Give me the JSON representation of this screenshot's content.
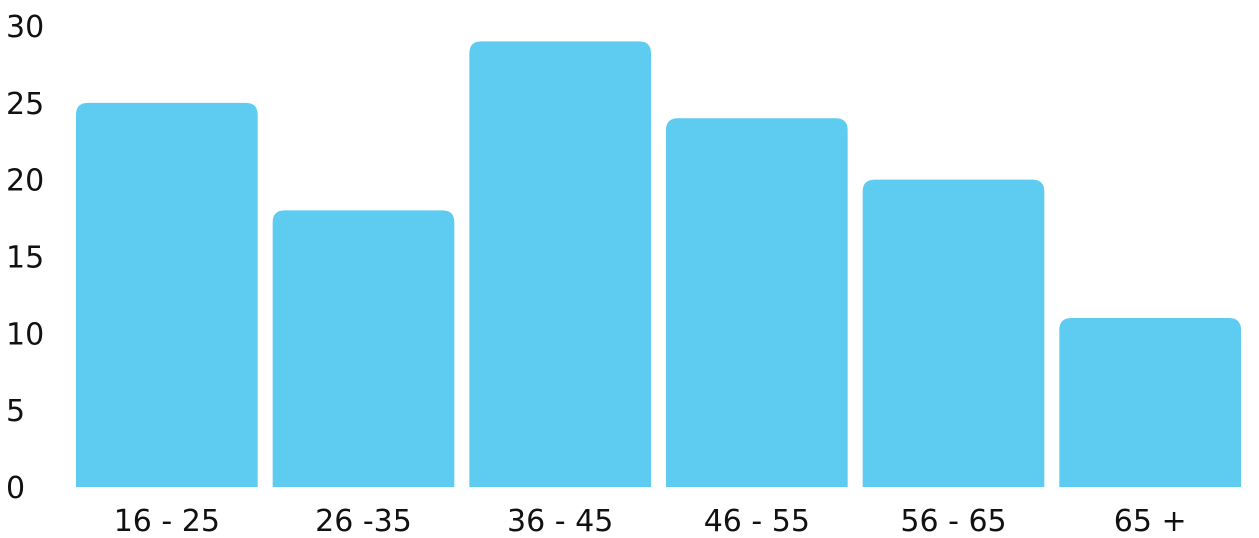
{
  "chart_data": {
    "type": "bar",
    "categories": [
      "16 - 25",
      "26 -35",
      "36 - 45",
      "46 - 55",
      "56 - 65",
      "65 +"
    ],
    "values": [
      25,
      18,
      29,
      24,
      20,
      11
    ],
    "title": "",
    "xlabel": "",
    "ylabel": "",
    "ylim": [
      0,
      30
    ],
    "yticks": [
      "0",
      "5",
      "10",
      "15",
      "20",
      "25",
      "30"
    ],
    "grid": false,
    "legend": "none",
    "bar_color": "#5ecbf0"
  }
}
